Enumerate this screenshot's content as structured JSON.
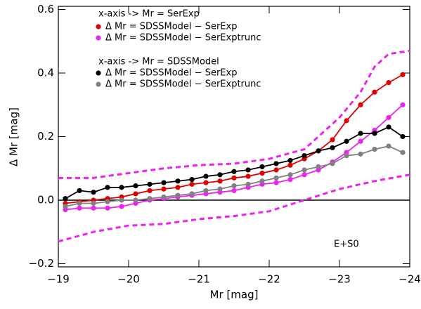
{
  "chart_data": {
    "type": "line",
    "xlabel": "Mr [mag]",
    "ylabel": "Δ Mr [mag]",
    "xlim": [
      -19,
      -24
    ],
    "ylim": [
      -0.21,
      0.61
    ],
    "xticks": [
      {
        "value": -19,
        "label": "−19"
      },
      {
        "value": -20,
        "label": "−20"
      },
      {
        "value": -21,
        "label": "−21"
      },
      {
        "value": -22,
        "label": "−22"
      },
      {
        "value": -23,
        "label": "−23"
      },
      {
        "value": -24,
        "label": "−24"
      }
    ],
    "yticks": [
      {
        "value": -0.2,
        "label": "−0.2"
      },
      {
        "value": 0,
        "label": "0.0"
      },
      0.2,
      0.4,
      0.6
    ],
    "hline": 0,
    "legend_headers": [
      "x-axis -> Mr = SerExp",
      "x-axis -> Mr = SDSSModel"
    ],
    "annotation": "E+S0",
    "x": [
      -19.1,
      -19.3,
      -19.5,
      -19.7,
      -19.9,
      -20.1,
      -20.3,
      -20.5,
      -20.7,
      -20.9,
      -21.1,
      -21.3,
      -21.5,
      -21.7,
      -21.9,
      -22.1,
      -22.3,
      -22.5,
      -22.7,
      -22.9,
      -23.1,
      -23.3,
      -23.5,
      -23.7,
      -23.9
    ],
    "series": [
      {
        "name": "Δ Mr = SDSSModel − SerExp",
        "color": "#e00000",
        "values": [
          -0.01,
          -0.005,
          0.0,
          0.005,
          0.01,
          0.02,
          0.03,
          0.035,
          0.04,
          0.05,
          0.055,
          0.06,
          0.07,
          0.075,
          0.085,
          0.095,
          0.11,
          0.13,
          0.155,
          0.19,
          0.25,
          0.3,
          0.34,
          0.37,
          0.395
        ]
      },
      {
        "name": "Δ Mr = SDSSModel − SerExptrunc",
        "color": "#ee22ee",
        "values": [
          -0.03,
          -0.025,
          -0.025,
          -0.025,
          -0.02,
          -0.01,
          0.0,
          0.005,
          0.01,
          0.015,
          0.02,
          0.025,
          0.03,
          0.04,
          0.05,
          0.055,
          0.065,
          0.08,
          0.095,
          0.12,
          0.15,
          0.185,
          0.22,
          0.26,
          0.3
        ]
      },
      {
        "name": "Δ Mr = SDSSModel − SerExp",
        "color": "#000000",
        "values": [
          0.005,
          0.03,
          0.025,
          0.04,
          0.04,
          0.045,
          0.05,
          0.055,
          0.06,
          0.065,
          0.075,
          0.08,
          0.09,
          0.095,
          0.105,
          0.115,
          0.125,
          0.14,
          0.155,
          0.165,
          0.185,
          0.21,
          0.21,
          0.23,
          0.2
        ]
      },
      {
        "name": "Δ Mr = SDSSModel − SerExptrunc",
        "color": "#808080",
        "values": [
          -0.02,
          -0.01,
          -0.01,
          -0.005,
          0.0,
          0.0,
          0.005,
          0.01,
          0.015,
          0.02,
          0.03,
          0.035,
          0.045,
          0.05,
          0.06,
          0.07,
          0.08,
          0.095,
          0.105,
          0.115,
          0.14,
          0.145,
          0.16,
          0.17,
          0.15
        ]
      },
      {
        "color": "#ee22ee",
        "dashed": true,
        "x": [
          -19,
          -19.5,
          -20,
          -20.5,
          -21,
          -21.5,
          -22,
          -22.5,
          -23,
          -23.3,
          -23.5,
          -23.7,
          -24
        ],
        "values": [
          0.07,
          0.07,
          0.085,
          0.1,
          0.11,
          0.115,
          0.13,
          0.16,
          0.26,
          0.34,
          0.42,
          0.46,
          0.47
        ]
      },
      {
        "color": "#ee22ee",
        "dashed": true,
        "x": [
          -19,
          -19.5,
          -20,
          -20.5,
          -21,
          -21.5,
          -22,
          -22.5,
          -23,
          -23.5,
          -24
        ],
        "values": [
          -0.13,
          -0.1,
          -0.08,
          -0.075,
          -0.06,
          -0.05,
          -0.035,
          0.0,
          0.035,
          0.06,
          0.08
        ]
      }
    ]
  }
}
